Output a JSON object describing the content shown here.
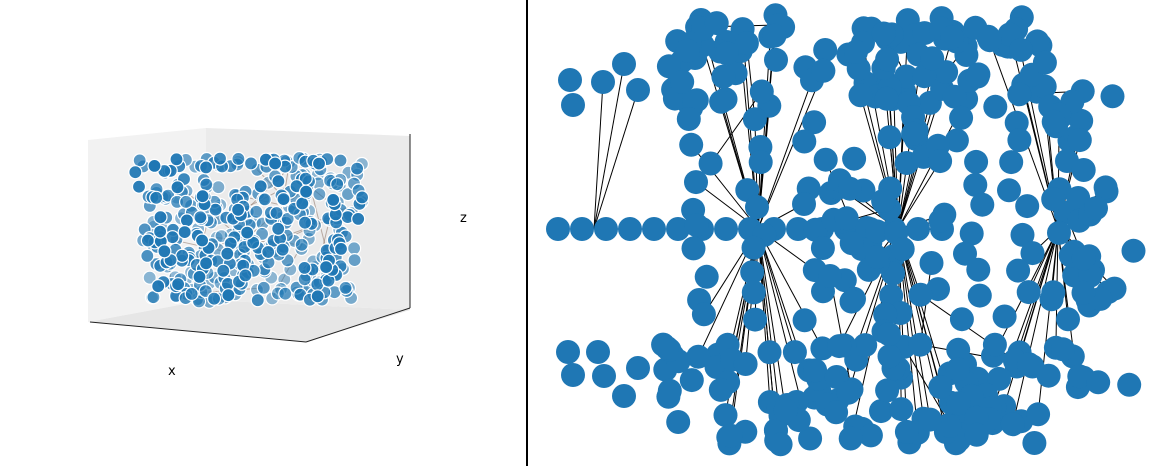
{
  "chart_data": [
    {
      "type": "scatter",
      "projection": "3d",
      "title": "",
      "xlabel": "x",
      "ylabel": "y",
      "zlabel": "z",
      "node_color": "#1f77b4",
      "edge_color": "#000000",
      "edges_shown": true,
      "grid": false,
      "pane_color": "#f2f2f2",
      "approx_point_count": 400
    },
    {
      "type": "scatter",
      "subtype": "network-graph",
      "title": "",
      "node_color": "#1f77b4",
      "edge_color": "#000000",
      "axes_shown": false,
      "approx_node_count": 420
    }
  ]
}
